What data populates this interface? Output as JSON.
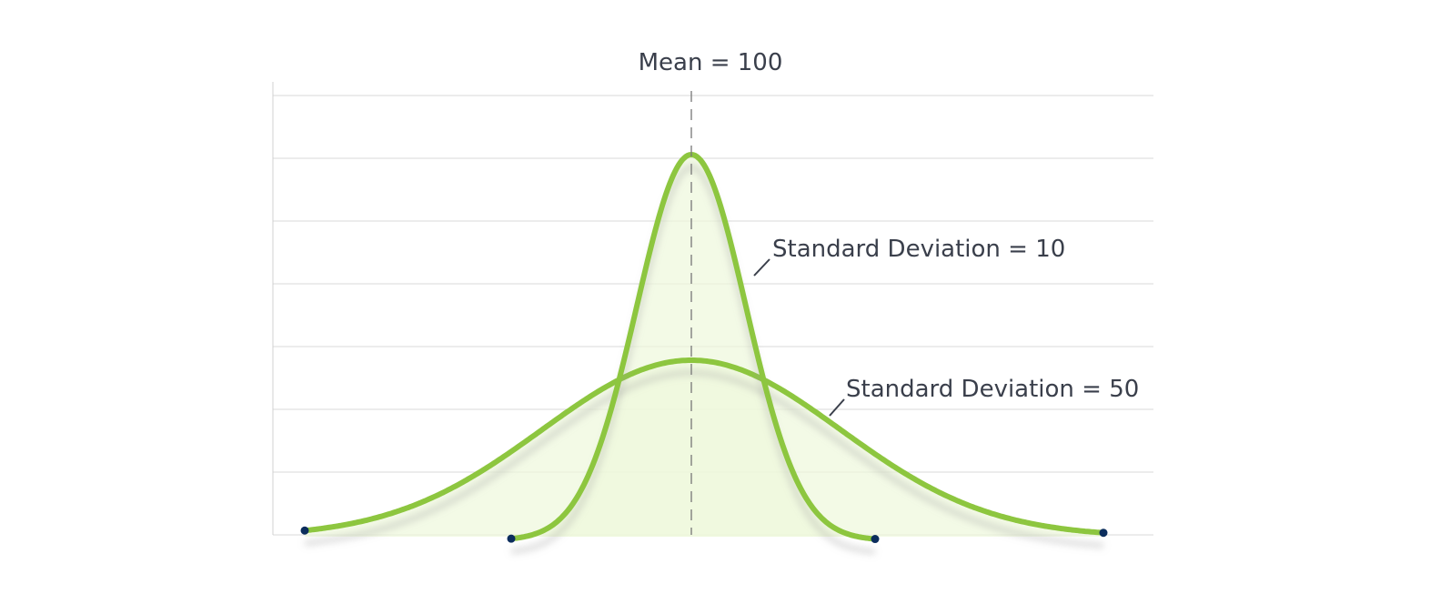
{
  "annotations": {
    "mean": "Mean = 100",
    "narrow": "Standard Deviation = 10",
    "wide": "Standard Deviation = 50"
  }
}
